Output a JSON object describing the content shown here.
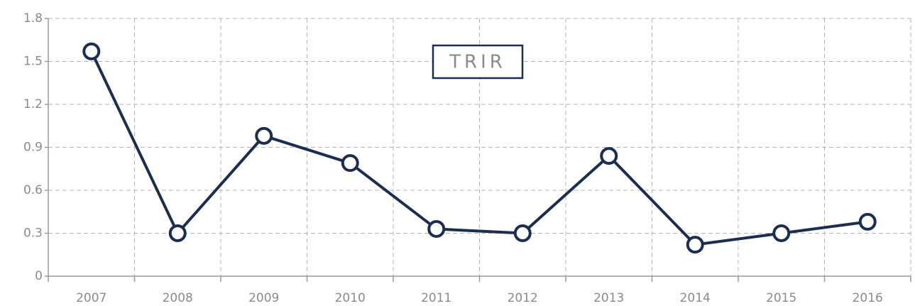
{
  "chart_data": {
    "type": "line",
    "categories": [
      "2007",
      "2008",
      "2009",
      "2010",
      "2011",
      "2012",
      "2013",
      "2014",
      "2015",
      "2016"
    ],
    "series": [
      {
        "name": "TRIR",
        "color": "#1c2e4f",
        "values": [
          1.57,
          0.3,
          0.98,
          0.79,
          0.33,
          0.3,
          0.84,
          0.22,
          0.3,
          0.38
        ]
      }
    ],
    "ylim": [
      0,
      1.8
    ],
    "yticks": [
      0,
      0.3,
      0.6,
      0.9,
      1.2,
      1.5,
      1.8
    ],
    "grid": true,
    "legend": "top"
  }
}
